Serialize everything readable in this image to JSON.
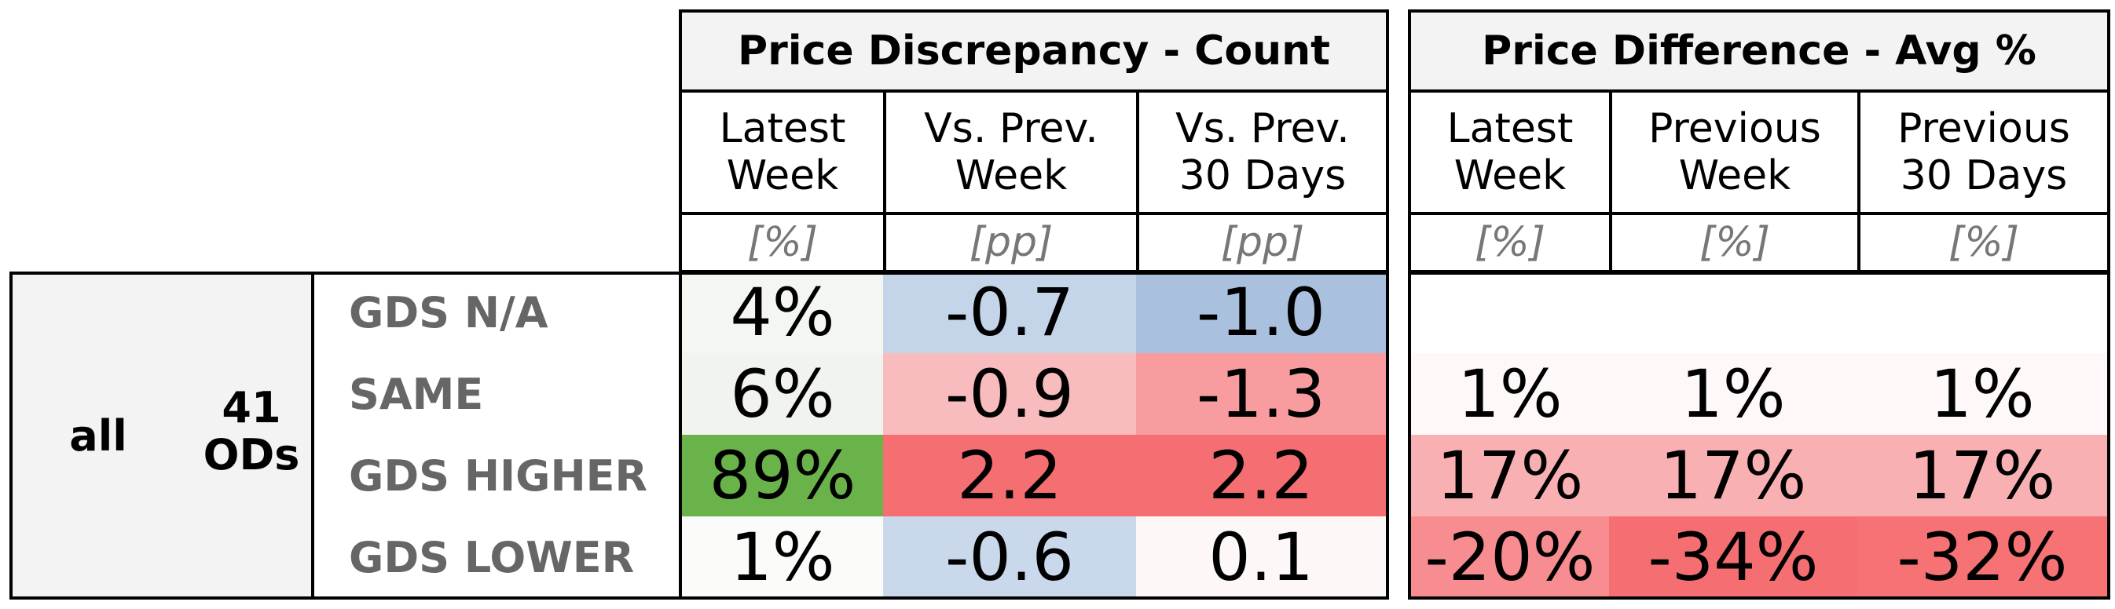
{
  "chart_data": {
    "type": "table",
    "group": {
      "label": "all",
      "od_count": "41",
      "od_unit": "ODs"
    },
    "rows": [
      "GDS N/A",
      "SAME",
      "GDS HIGHER",
      "GDS LOWER"
    ],
    "panels": [
      {
        "title": "Price Discrepancy - Count",
        "columns": [
          {
            "header": [
              "Latest",
              "Week"
            ],
            "unit": "[%]"
          },
          {
            "header": [
              "Vs. Prev.",
              "Week"
            ],
            "unit": "[pp]"
          },
          {
            "header": [
              "Vs. Prev.",
              "30 Days"
            ],
            "unit": "[pp]"
          }
        ],
        "values": [
          [
            "4%",
            "-0.7",
            "-1.0"
          ],
          [
            "6%",
            "-0.9",
            "-1.3"
          ],
          [
            "89%",
            "2.2",
            "2.2"
          ],
          [
            "1%",
            "-0.6",
            "0.1"
          ]
        ],
        "colors": [
          [
            "#f4f7f1",
            "#c5d5e9",
            "#a9c0df"
          ],
          [
            "#f1f4ee",
            "#f9bcbe",
            "#f89c9f"
          ],
          [
            "#6ab24a",
            "#f56e72",
            "#f56e72"
          ],
          [
            "#fbfcfa",
            "#c9d8eb",
            "#fef7f7"
          ]
        ]
      },
      {
        "title": "Price Difference - Avg %",
        "columns": [
          {
            "header": [
              "Latest",
              "Week"
            ],
            "unit": "[%]"
          },
          {
            "header": [
              "Previous",
              "Week"
            ],
            "unit": "[%]"
          },
          {
            "header": [
              "Previous",
              "30 Days"
            ],
            "unit": "[%]"
          }
        ],
        "values": [
          [
            "",
            "",
            ""
          ],
          [
            "1%",
            "1%",
            "1%"
          ],
          [
            "17%",
            "17%",
            "17%"
          ],
          [
            "-20%",
            "-34%",
            "-32%"
          ]
        ],
        "colors": [
          [
            "#ffffff",
            "#ffffff",
            "#ffffff"
          ],
          [
            "#fef8f8",
            "#fef8f8",
            "#fef8f8"
          ],
          [
            "#f9b0b3",
            "#f9b0b3",
            "#f9b0b3"
          ],
          [
            "#f78d90",
            "#f56e72",
            "#f67275"
          ]
        ]
      }
    ]
  }
}
